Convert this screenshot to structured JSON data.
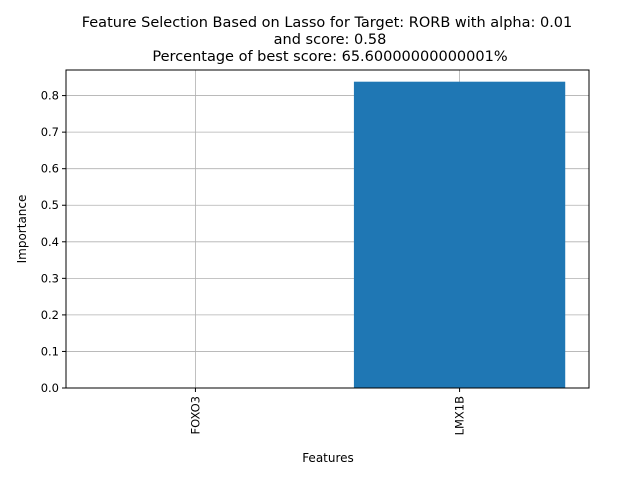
{
  "chart_data": {
    "type": "bar",
    "title_lines": [
      "Feature Selection Based on Lasso for Target: RORB with alpha: 0.01",
      "and score: 0.58",
      "Percentage of best score: 65.60000000000001%"
    ],
    "xlabel": "Features",
    "ylabel": "Importance",
    "categories": [
      "FOXO3",
      "LMX1B"
    ],
    "values": [
      0.0,
      0.838
    ],
    "ylim": [
      0,
      0.87
    ],
    "yticks": [
      "0.0",
      "0.1",
      "0.2",
      "0.3",
      "0.4",
      "0.5",
      "0.6",
      "0.7",
      "0.8"
    ],
    "grid": true,
    "bar_color": "#1f77b4",
    "grid_color": "#b0b0b0"
  }
}
